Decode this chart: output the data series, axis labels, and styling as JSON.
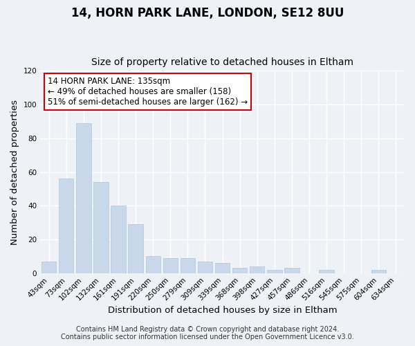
{
  "title": "14, HORN PARK LANE, LONDON, SE12 8UU",
  "subtitle": "Size of property relative to detached houses in Eltham",
  "xlabel": "Distribution of detached houses by size in Eltham",
  "ylabel": "Number of detached properties",
  "bar_color": "#c8d8ea",
  "bar_edge_color": "#b0c8dc",
  "categories": [
    "43sqm",
    "73sqm",
    "102sqm",
    "132sqm",
    "161sqm",
    "191sqm",
    "220sqm",
    "250sqm",
    "279sqm",
    "309sqm",
    "339sqm",
    "368sqm",
    "398sqm",
    "427sqm",
    "457sqm",
    "486sqm",
    "516sqm",
    "545sqm",
    "575sqm",
    "604sqm",
    "634sqm"
  ],
  "values": [
    7,
    56,
    89,
    54,
    40,
    29,
    10,
    9,
    9,
    7,
    6,
    3,
    4,
    2,
    3,
    0,
    2,
    0,
    0,
    2,
    0
  ],
  "ylim": [
    0,
    120
  ],
  "yticks": [
    0,
    20,
    40,
    60,
    80,
    100,
    120
  ],
  "annotation_line1": "14 HORN PARK LANE: 135sqm",
  "annotation_line2": "← 49% of detached houses are smaller (158)",
  "annotation_line3": "51% of semi-detached houses are larger (162) →",
  "annotation_box_color": "white",
  "annotation_box_edge_color": "#cc0000",
  "footer_line1": "Contains HM Land Registry data © Crown copyright and database right 2024.",
  "footer_line2": "Contains public sector information licensed under the Open Government Licence v3.0.",
  "background_color": "#eef2f7",
  "grid_color": "white",
  "title_fontsize": 12,
  "subtitle_fontsize": 10,
  "axis_label_fontsize": 9.5,
  "tick_fontsize": 7.5,
  "annotation_fontsize": 8.5,
  "footer_fontsize": 7
}
